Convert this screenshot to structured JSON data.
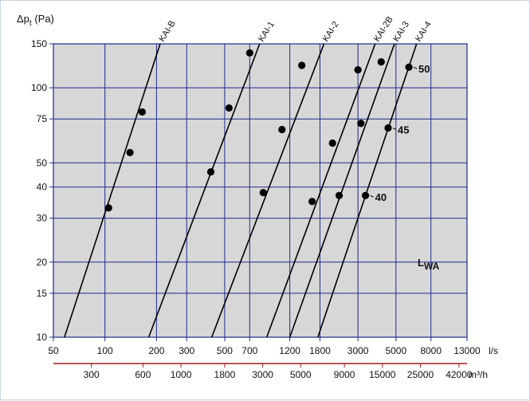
{
  "chart_data": {
    "type": "line",
    "x_scale": "log",
    "y_scale": "log",
    "grid": true,
    "ylabel": {
      "main": "Δp",
      "sub": "t",
      "unit": " (Pa)"
    },
    "x_unit": "l/s",
    "x2_unit": "m³/h",
    "xlim": [
      50,
      13000
    ],
    "ylim": [
      10,
      150
    ],
    "y_ticks": [
      10,
      15,
      20,
      30,
      40,
      50,
      75,
      100,
      150
    ],
    "x_ticks": [
      50,
      100,
      200,
      300,
      500,
      700,
      1200,
      1800,
      3000,
      5000,
      8000,
      13000
    ],
    "x_tick_labels": [
      "50",
      "100",
      "200",
      "300",
      "500",
      "700",
      "1200",
      "1800",
      "3000",
      "5000",
      "8000",
      "13000"
    ],
    "x2_ticks": [
      300,
      600,
      1000,
      1800,
      3000,
      5000,
      9000,
      15000,
      25000,
      42000
    ],
    "x2_tick_labels": [
      "300",
      "600",
      "1000",
      "1800",
      "3000",
      "5000",
      "9000",
      "15000",
      "25000",
      "42000"
    ],
    "series": [
      {
        "name": "KAI-B",
        "line": [
          [
            58,
            10
          ],
          [
            210,
            150
          ]
        ],
        "points": [
          [
            105,
            33
          ],
          [
            140,
            55
          ],
          [
            165,
            80
          ]
        ]
      },
      {
        "name": "KAI-1",
        "line": [
          [
            180,
            10
          ],
          [
            800,
            150
          ]
        ],
        "points": [
          [
            415,
            46
          ],
          [
            530,
            83
          ],
          [
            700,
            138
          ]
        ]
      },
      {
        "name": "KAI-2",
        "line": [
          [
            420,
            10
          ],
          [
            1900,
            150
          ]
        ],
        "points": [
          [
            840,
            38
          ],
          [
            1080,
            68
          ],
          [
            1410,
            123
          ]
        ]
      },
      {
        "name": "KAI-2B",
        "line": [
          [
            880,
            10
          ],
          [
            3780,
            150
          ]
        ],
        "points": [
          [
            1620,
            35
          ],
          [
            2130,
            60
          ],
          [
            3000,
            118
          ]
        ]
      },
      {
        "name": "KAI-3",
        "line": [
          [
            1200,
            10
          ],
          [
            4900,
            150
          ]
        ],
        "points": [
          [
            2330,
            37
          ],
          [
            3120,
            72
          ],
          [
            4100,
            127
          ]
        ]
      },
      {
        "name": "KAI-4",
        "line": [
          [
            1750,
            10
          ],
          [
            6600,
            150
          ]
        ],
        "points": [
          [
            3320,
            37
          ],
          [
            4500,
            69
          ],
          [
            5950,
            121
          ]
        ]
      }
    ],
    "lwa_label": {
      "main": "L",
      "sub": "WA"
    },
    "lwa_lines": [
      {
        "label": "40",
        "pos": [
          3320,
          37
        ]
      },
      {
        "label": "45",
        "pos": [
          4500,
          69
        ]
      },
      {
        "label": "50",
        "pos": [
          5950,
          121
        ]
      }
    ],
    "colors": {
      "plot_bg": "#d7d7d7",
      "grid": "#1d2b8e",
      "curve": "#000000",
      "axis2": "#9c1c1c"
    }
  }
}
